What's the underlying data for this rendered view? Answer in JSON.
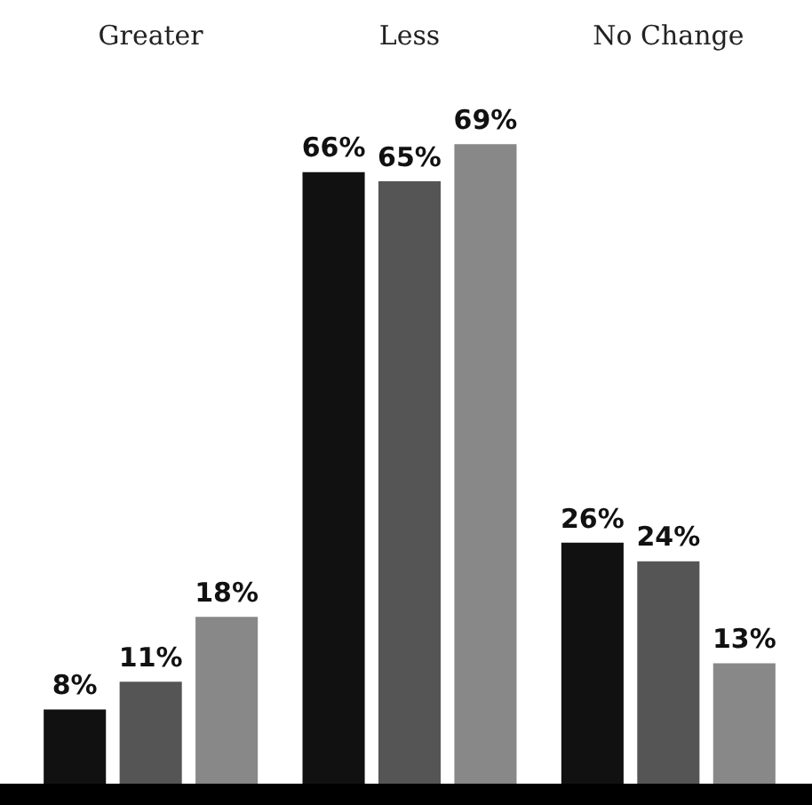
{
  "chart_data": {
    "type": "bar",
    "categories": [
      "Greater",
      "Less",
      "No Change"
    ],
    "series": [
      {
        "color": "#111111",
        "values": [
          8,
          66,
          26
        ],
        "value_labels": [
          "8%",
          "66%",
          "26%"
        ]
      },
      {
        "color": "#555555",
        "values": [
          11,
          65,
          24
        ],
        "value_labels": [
          "11%",
          "65%",
          "24%"
        ]
      },
      {
        "color": "#888888",
        "values": [
          18,
          69,
          13
        ],
        "value_labels": [
          "18%",
          "69%",
          "13%"
        ]
      }
    ],
    "grid": false,
    "legend": false
  }
}
